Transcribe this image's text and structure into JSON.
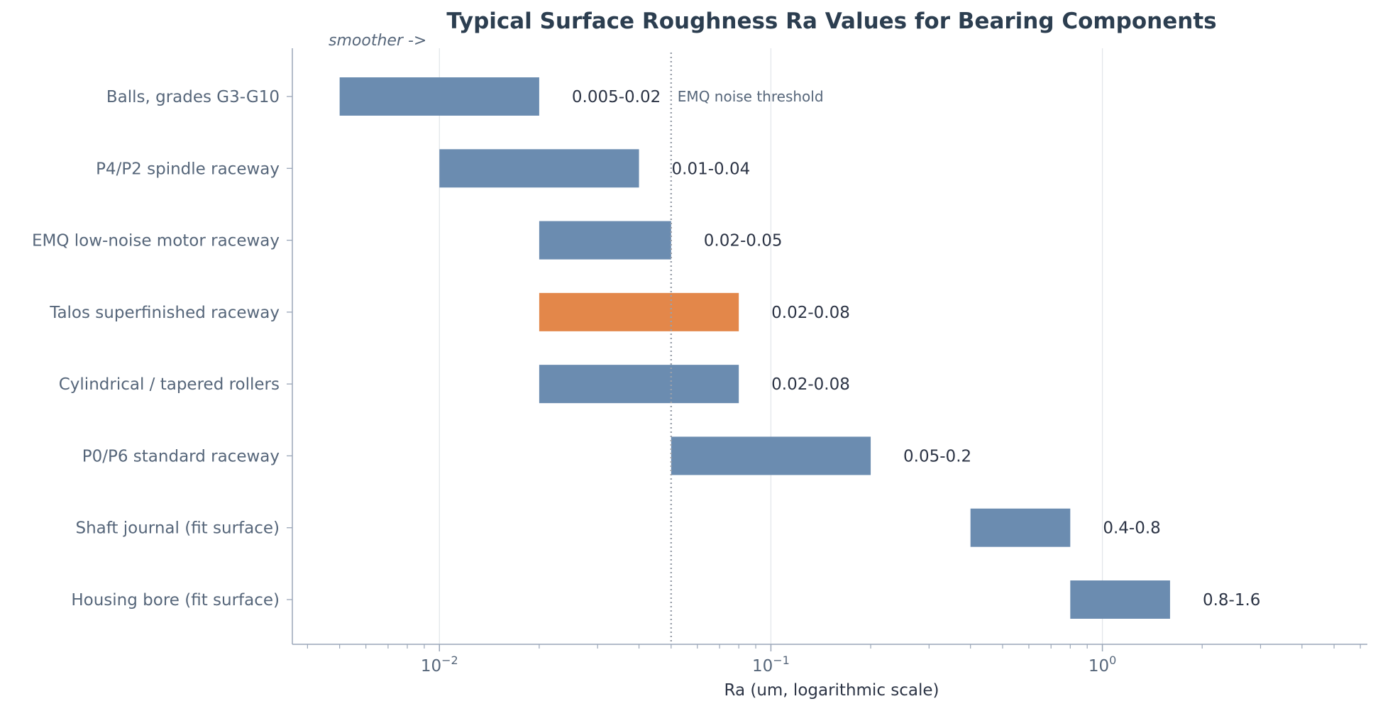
{
  "chart_data": {
    "type": "bar",
    "orientation": "horizontal-range",
    "title": "Typical Surface Roughness Ra Values for Bearing Components",
    "xlabel": "Ra (um, logarithmic scale)",
    "ylabel": "",
    "xscale": "log",
    "xlim": [
      0.0036,
      6.3
    ],
    "grid": "vertical major gridlines",
    "x_ticks": [
      {
        "base": "10",
        "exp": "−2",
        "value": 0.01
      },
      {
        "base": "10",
        "exp": "−1",
        "value": 0.1
      },
      {
        "base": "10",
        "exp": "0",
        "value": 1
      }
    ],
    "categories": [
      "Balls, grades G3-G10",
      "P4/P2 spindle raceway",
      "EMQ low-noise motor raceway",
      "Talos superfinished raceway",
      "Cylindrical / tapered rollers",
      "P0/P6 standard raceway",
      "Shaft journal (fit surface)",
      "Housing bore (fit surface)"
    ],
    "ranges": [
      [
        0.005,
        0.02
      ],
      [
        0.01,
        0.04
      ],
      [
        0.02,
        0.05
      ],
      [
        0.02,
        0.08
      ],
      [
        0.02,
        0.08
      ],
      [
        0.05,
        0.2
      ],
      [
        0.4,
        0.8
      ],
      [
        0.8,
        1.6
      ]
    ],
    "value_labels": [
      "0.005-0.02",
      "0.01-0.04",
      "0.02-0.05",
      "0.02-0.08",
      "0.02-0.08",
      "0.05-0.2",
      "0.4-0.8",
      "0.8-1.6"
    ],
    "highlight_index": 3,
    "colors": {
      "bar": "#6b8cb0",
      "highlight": "#e3874a",
      "reference_line": "#9aa0aa",
      "axis": "#9aa6b8",
      "grid": "#e3e6ea"
    },
    "reference_line": {
      "value": 0.05,
      "label": "EMQ noise threshold",
      "style": "dotted"
    },
    "direction_annotation": "smoother ->"
  }
}
